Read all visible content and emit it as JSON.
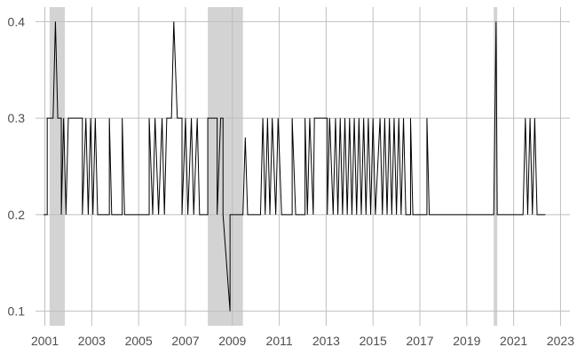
{
  "chart_data": {
    "type": "line",
    "title": "",
    "xlabel": "",
    "ylabel": "",
    "xlim": [
      2000.6,
      2023.4
    ],
    "ylim": [
      0.085,
      0.415
    ],
    "grid": true,
    "x_ticks": [
      2001,
      2003,
      2005,
      2007,
      2009,
      2011,
      2013,
      2015,
      2017,
      2019,
      2021,
      2023
    ],
    "x_tick_labels": [
      "2001",
      "2003",
      "2005",
      "2007",
      "2009",
      "2011",
      "2013",
      "2015",
      "2017",
      "2019",
      "2021",
      "2023"
    ],
    "y_ticks": [
      0.1,
      0.2,
      0.3,
      0.4
    ],
    "y_tick_labels": [
      "0.1",
      "0.2",
      "0.3",
      "0.4"
    ],
    "recession_shading": [
      {
        "start": 2001.2,
        "end": 2001.85
      },
      {
        "start": 2007.95,
        "end": 2009.45
      },
      {
        "start": 2020.15,
        "end": 2020.3
      }
    ],
    "series": [
      {
        "values": [
          [
            2000.95,
            0.2
          ],
          [
            2001.1,
            0.2
          ],
          [
            2001.1,
            0.3
          ],
          [
            2001.35,
            0.3
          ],
          [
            2001.45,
            0.4
          ],
          [
            2001.55,
            0.3
          ],
          [
            2001.7,
            0.3
          ],
          [
            2001.7,
            0.2
          ],
          [
            2001.8,
            0.3
          ],
          [
            2001.9,
            0.2
          ],
          [
            2002.0,
            0.3
          ],
          [
            2002.6,
            0.3
          ],
          [
            2002.6,
            0.2
          ],
          [
            2002.75,
            0.3
          ],
          [
            2002.85,
            0.2
          ],
          [
            2002.95,
            0.3
          ],
          [
            2003.05,
            0.2
          ],
          [
            2003.15,
            0.3
          ],
          [
            2003.25,
            0.2
          ],
          [
            2003.75,
            0.2
          ],
          [
            2003.75,
            0.3
          ],
          [
            2003.85,
            0.2
          ],
          [
            2004.3,
            0.2
          ],
          [
            2004.3,
            0.3
          ],
          [
            2004.4,
            0.2
          ],
          [
            2005.45,
            0.2
          ],
          [
            2005.45,
            0.3
          ],
          [
            2005.6,
            0.2
          ],
          [
            2005.7,
            0.3
          ],
          [
            2005.85,
            0.2
          ],
          [
            2006.0,
            0.3
          ],
          [
            2006.1,
            0.2
          ],
          [
            2006.2,
            0.3
          ],
          [
            2006.4,
            0.3
          ],
          [
            2006.5,
            0.4
          ],
          [
            2006.65,
            0.3
          ],
          [
            2006.85,
            0.3
          ],
          [
            2006.85,
            0.2
          ],
          [
            2007.0,
            0.3
          ],
          [
            2007.1,
            0.2
          ],
          [
            2007.25,
            0.3
          ],
          [
            2007.35,
            0.2
          ],
          [
            2007.5,
            0.3
          ],
          [
            2007.6,
            0.2
          ],
          [
            2007.95,
            0.2
          ],
          [
            2007.95,
            0.3
          ],
          [
            2008.35,
            0.3
          ],
          [
            2008.35,
            0.2
          ],
          [
            2008.5,
            0.3
          ],
          [
            2008.6,
            0.3
          ],
          [
            2008.6,
            0.2
          ],
          [
            2008.9,
            0.1
          ],
          [
            2008.9,
            0.2
          ],
          [
            2009.45,
            0.2
          ],
          [
            2009.55,
            0.28
          ],
          [
            2009.65,
            0.2
          ],
          [
            2010.2,
            0.2
          ],
          [
            2010.3,
            0.3
          ],
          [
            2010.4,
            0.2
          ],
          [
            2010.5,
            0.3
          ],
          [
            2010.6,
            0.2
          ],
          [
            2010.7,
            0.3
          ],
          [
            2010.85,
            0.2
          ],
          [
            2010.95,
            0.3
          ],
          [
            2011.1,
            0.2
          ],
          [
            2011.55,
            0.2
          ],
          [
            2011.55,
            0.3
          ],
          [
            2011.7,
            0.2
          ],
          [
            2012.1,
            0.2
          ],
          [
            2012.1,
            0.3
          ],
          [
            2012.2,
            0.2
          ],
          [
            2012.3,
            0.3
          ],
          [
            2012.45,
            0.2
          ],
          [
            2012.5,
            0.3
          ],
          [
            2013.05,
            0.3
          ],
          [
            2013.05,
            0.2
          ],
          [
            2013.15,
            0.3
          ],
          [
            2013.3,
            0.2
          ],
          [
            2013.4,
            0.3
          ],
          [
            2013.5,
            0.2
          ],
          [
            2013.6,
            0.3
          ],
          [
            2013.7,
            0.2
          ],
          [
            2013.8,
            0.3
          ],
          [
            2013.9,
            0.2
          ],
          [
            2014.0,
            0.3
          ],
          [
            2014.1,
            0.2
          ],
          [
            2014.2,
            0.3
          ],
          [
            2014.3,
            0.2
          ],
          [
            2014.4,
            0.3
          ],
          [
            2014.5,
            0.2
          ],
          [
            2014.6,
            0.3
          ],
          [
            2014.7,
            0.2
          ],
          [
            2014.8,
            0.3
          ],
          [
            2014.9,
            0.2
          ],
          [
            2015.0,
            0.3
          ],
          [
            2015.1,
            0.2
          ],
          [
            2015.3,
            0.3
          ],
          [
            2015.4,
            0.2
          ],
          [
            2015.5,
            0.3
          ],
          [
            2015.6,
            0.2
          ],
          [
            2015.7,
            0.3
          ],
          [
            2015.8,
            0.2
          ],
          [
            2015.9,
            0.3
          ],
          [
            2016.0,
            0.2
          ],
          [
            2016.1,
            0.3
          ],
          [
            2016.2,
            0.2
          ],
          [
            2016.3,
            0.3
          ],
          [
            2016.4,
            0.2
          ],
          [
            2016.6,
            0.2
          ],
          [
            2016.6,
            0.3
          ],
          [
            2016.7,
            0.2
          ],
          [
            2017.3,
            0.2
          ],
          [
            2017.3,
            0.3
          ],
          [
            2017.4,
            0.2
          ],
          [
            2020.15,
            0.2
          ],
          [
            2020.25,
            0.4
          ],
          [
            2020.3,
            0.2
          ],
          [
            2021.4,
            0.2
          ],
          [
            2021.5,
            0.3
          ],
          [
            2021.6,
            0.2
          ],
          [
            2021.7,
            0.3
          ],
          [
            2021.8,
            0.2
          ],
          [
            2021.9,
            0.3
          ],
          [
            2022.0,
            0.2
          ],
          [
            2022.35,
            0.2
          ]
        ]
      }
    ]
  }
}
